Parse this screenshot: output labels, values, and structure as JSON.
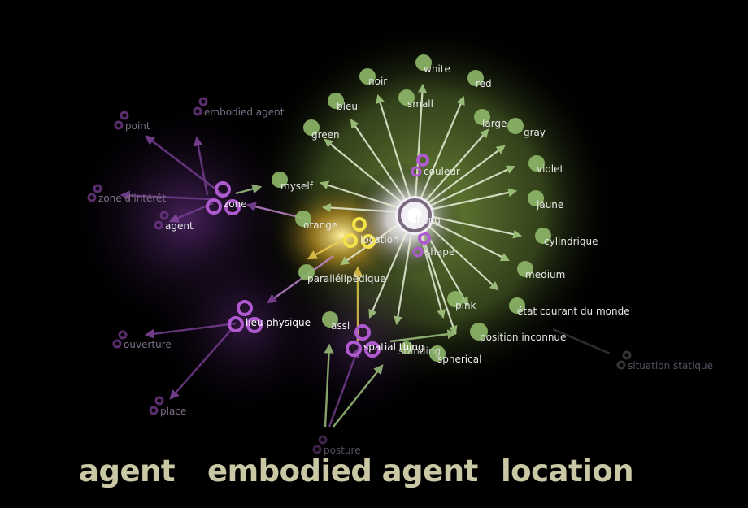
{
  "diagram": {
    "center": {
      "label": "thing"
    },
    "nodes": {
      "white": "white",
      "noir": "noir",
      "red": "red",
      "bleu": "bleu",
      "small": "small",
      "large": "large",
      "gray": "gray",
      "green": "green",
      "couleur": "couleur",
      "violet": "violet",
      "myself": "myself",
      "jaune": "jaune",
      "orange": "orange",
      "location": "location",
      "cylindrique": "cylindrique",
      "shape": "shape",
      "medium": "medium",
      "parallelepipedique": "parallélipèdique",
      "pink": "pink",
      "etat": "état courant du monde",
      "position": "position inconnue",
      "assi": "assi",
      "spatial": "spatial thing",
      "standing": "standing",
      "spherical": "spherical",
      "zone": "zone",
      "point": "point",
      "embodied": "embodied agent",
      "zone_interet": "zone d'intérêt",
      "agent": "agent",
      "lieu": "lieu physique",
      "ouverture": "ouverture",
      "place": "place",
      "posture": "posture",
      "situation": "situation statique"
    }
  },
  "footer": {
    "tabs": [
      "agent",
      "embodied agent",
      "location"
    ]
  },
  "colors": {
    "background": "#000000",
    "green_node": "#8fb86a",
    "purple_node": "#b05ad0",
    "yellow_node": "#f0e060",
    "footer_text": "#c9c7a4"
  }
}
